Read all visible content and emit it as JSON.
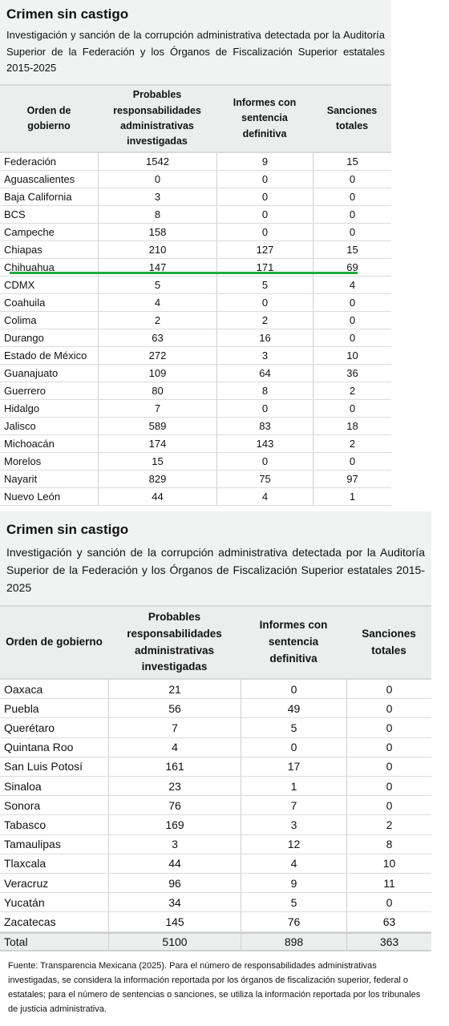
{
  "panels": [
    {
      "title": "Crimen sin castigo",
      "subtitle": "Investigación y sanción de la corrupción administrativa detectada por la Auditoría Superior de la Federación y los Órganos de Fiscalización Superior estatales 2015-2025",
      "columns": [
        "Orden de gobierno",
        "Probables responsabilidades administrativas investigadas",
        "Informes con sentencia definitiva",
        "Sanciones totales"
      ],
      "rows": [
        [
          "Federación",
          1542,
          9,
          15
        ],
        [
          "Aguascalientes",
          0,
          0,
          0
        ],
        [
          "Baja California",
          3,
          0,
          0
        ],
        [
          "BCS",
          8,
          0,
          0
        ],
        [
          "Campeche",
          158,
          0,
          0
        ],
        [
          "Chiapas",
          210,
          127,
          15
        ],
        [
          "Chihuahua",
          147,
          171,
          69
        ],
        [
          "CDMX",
          5,
          5,
          4
        ],
        [
          "Coahuila",
          4,
          0,
          0
        ],
        [
          "Colima",
          2,
          2,
          0
        ],
        [
          "Durango",
          63,
          16,
          0
        ],
        [
          "Estado de México",
          272,
          3,
          10
        ],
        [
          "Guanajuato",
          109,
          64,
          36
        ],
        [
          "Guerrero",
          80,
          8,
          2
        ],
        [
          "Hidalgo",
          7,
          0,
          0
        ],
        [
          "Jalisco",
          589,
          83,
          18
        ],
        [
          "Michoacán",
          174,
          143,
          2
        ],
        [
          "Morelos",
          15,
          0,
          0
        ],
        [
          "Nayarit",
          829,
          75,
          97
        ],
        [
          "Nuevo León",
          44,
          4,
          1
        ]
      ]
    },
    {
      "title": "Crimen sin castigo",
      "subtitle": "Investigación y sanción de la corrupción administrativa detectada por la Auditoría Superior de la Federación y los Órganos de Fiscalización Superior estatales 2015-2025",
      "columns": [
        "Orden de gobierno",
        "Probables responsabilidades administrativas investigadas",
        "Informes con sentencia definitiva",
        "Sanciones totales"
      ],
      "rows": [
        [
          "Oaxaca",
          21,
          0,
          0
        ],
        [
          "Puebla",
          56,
          49,
          0
        ],
        [
          "Querétaro",
          7,
          5,
          0
        ],
        [
          "Quintana Roo",
          4,
          0,
          0
        ],
        [
          "San Luis Potosí",
          161,
          17,
          0
        ],
        [
          "Sinaloa",
          23,
          1,
          0
        ],
        [
          "Sonora",
          76,
          7,
          0
        ],
        [
          "Tabasco",
          169,
          3,
          2
        ],
        [
          "Tamaulipas",
          3,
          12,
          8
        ],
        [
          "Tlaxcala",
          44,
          4,
          10
        ],
        [
          "Veracruz",
          96,
          9,
          11
        ],
        [
          "Yucatán",
          34,
          5,
          0
        ],
        [
          "Zacatecas",
          145,
          76,
          63
        ]
      ],
      "total_row": [
        "Total",
        5100,
        898,
        363
      ]
    }
  ],
  "footnote": "Fuente: Transparencia Mexicana (2025). Para el número de responsabilidades administrativas investigadas, se considera la información reportada por los órganos de fiscalización superior, federal o estatales; para el número  de sentencias o sanciones, se utiliza la información reportada por los tribunales de justicia administrativa."
}
